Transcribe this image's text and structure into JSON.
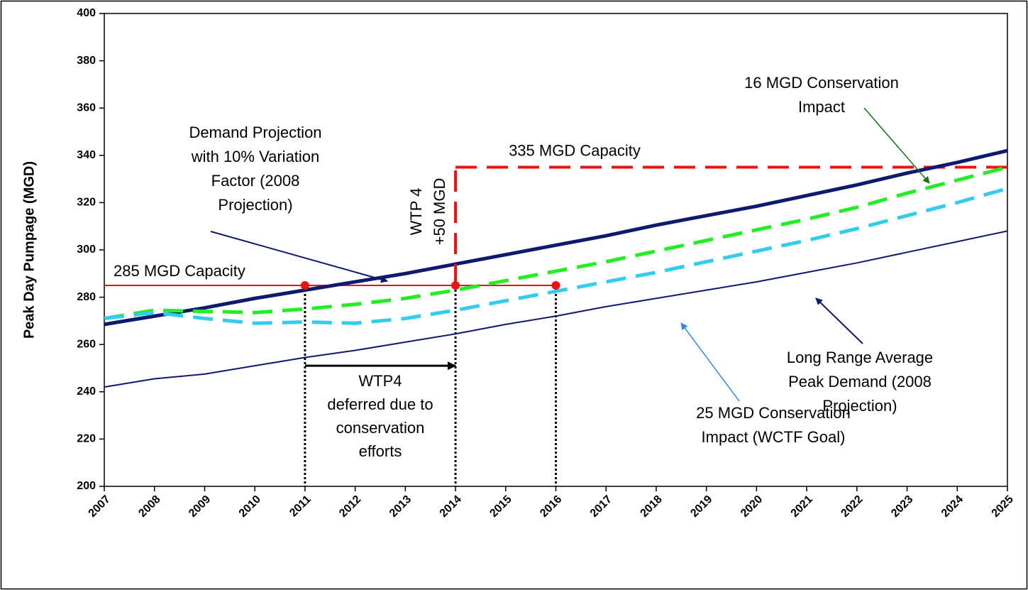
{
  "chart_data": {
    "type": "line",
    "y_label": "Peak Day Pumpage (MGD)",
    "x": [
      2007,
      2008,
      2009,
      2010,
      2011,
      2012,
      2013,
      2014,
      2015,
      2016,
      2017,
      2018,
      2019,
      2020,
      2021,
      2022,
      2023,
      2024,
      2025
    ],
    "xlim": [
      2007,
      2025
    ],
    "xticks": [
      2007,
      2008,
      2009,
      2010,
      2011,
      2012,
      2013,
      2014,
      2015,
      2016,
      2017,
      2018,
      2019,
      2020,
      2021,
      2022,
      2023,
      2024,
      2025
    ],
    "ylim": [
      200,
      400
    ],
    "yticks": [
      200,
      220,
      240,
      260,
      280,
      300,
      320,
      340,
      360,
      380,
      400
    ],
    "series": [
      {
        "label": [
          "Demand Projection",
          "with 10% Variation",
          "Factor (2008",
          "Projection)"
        ],
        "color": "#0d1a6e",
        "width": 5,
        "dash": "none",
        "values": [
          268.5,
          272,
          275.5,
          279.5,
          283,
          286.5,
          290,
          294,
          298,
          302,
          306,
          310.5,
          314.5,
          318.5,
          323,
          327.5,
          332.5,
          337,
          342
        ]
      },
      {
        "label": [
          "Long Range Average",
          "Peak Demand (2008",
          "Projection)"
        ],
        "color": "#0d1a6e",
        "width": 2,
        "dash": "none",
        "values": [
          242,
          245.5,
          247.5,
          251,
          254.5,
          257.5,
          261,
          264.5,
          268.5,
          272,
          276,
          279.5,
          283,
          286.5,
          290.5,
          294.5,
          299,
          303.5,
          308
        ]
      },
      {
        "label": [
          "16 MGD Conservation",
          "Impact"
        ],
        "color": "#22ee22",
        "width": 5,
        "dash": "28 14",
        "values": [
          271,
          274.5,
          274,
          273.5,
          275,
          277,
          279.5,
          283,
          287,
          291,
          295,
          299.5,
          304,
          308.5,
          313,
          318,
          324,
          329.5,
          335
        ]
      },
      {
        "label": [
          "25 MGD Conservation",
          "Impact (WCTF Goal)"
        ],
        "color": "#33ccee",
        "width": 5,
        "dash": "28 14",
        "values": [
          271,
          273.5,
          271,
          269,
          269.5,
          269,
          271,
          274.5,
          278.5,
          282.5,
          286.5,
          290.5,
          295,
          299.5,
          304,
          309,
          314.5,
          320,
          326
        ]
      }
    ],
    "capacities": [
      {
        "label": "285 MGD Capacity",
        "value": 285,
        "from": 2007,
        "to": 2016,
        "color": "#ee1111"
      },
      {
        "label": "335 MGD Capacity",
        "value": 335,
        "from": 2014,
        "to": 2025,
        "color": "#ee1111"
      }
    ],
    "markers": {
      "x": [
        2011,
        2014,
        2016
      ],
      "y": [
        285,
        285,
        285
      ],
      "color": "#ee1111"
    },
    "wtp4": {
      "label": [
        "WTP 4",
        "+50 MGD"
      ],
      "x": 2014,
      "from": 285,
      "to": 335
    },
    "deferral": {
      "label": [
        "WTP4",
        "deferred due to",
        "conservation",
        "efforts"
      ],
      "from": 2011,
      "to": 2014,
      "y": 251
    }
  }
}
